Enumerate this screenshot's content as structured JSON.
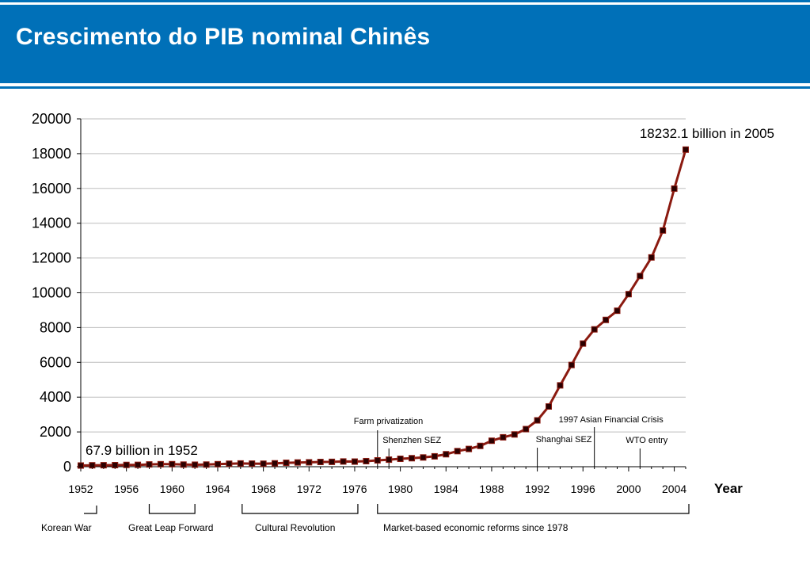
{
  "slide": {
    "title": "Crescimento do PIB nominal Chinês"
  },
  "colors": {
    "header": "#0070b8",
    "line": "#8b1a10",
    "marker": "#2a0000"
  },
  "chart_data": {
    "type": "line",
    "title": "",
    "xlabel": "Year",
    "ylabel": "",
    "xlim": [
      1952,
      2005
    ],
    "ylim": [
      0,
      20000
    ],
    "grid": true,
    "yticks": [
      0,
      2000,
      4000,
      6000,
      8000,
      10000,
      12000,
      14000,
      16000,
      18000,
      20000
    ],
    "xticks": [
      1952,
      1956,
      1960,
      1964,
      1968,
      1972,
      1976,
      1980,
      1984,
      1988,
      1992,
      1996,
      2000,
      2004
    ],
    "series": [
      {
        "x": [
          1952,
          1953,
          1954,
          1955,
          1956,
          1957,
          1958,
          1959,
          1960,
          1961,
          1962,
          1963,
          1964,
          1965,
          1966,
          1967,
          1968,
          1969,
          1970,
          1971,
          1972,
          1973,
          1974,
          1975,
          1976,
          1977,
          1978,
          1979,
          1980,
          1981,
          1982,
          1983,
          1984,
          1985,
          1986,
          1987,
          1988,
          1989,
          1990,
          1991,
          1992,
          1993,
          1994,
          1995,
          1996,
          1997,
          1998,
          1999,
          2000,
          2001,
          2002,
          2003,
          2004,
          2005
        ],
        "y": [
          67.9,
          82,
          86,
          91,
          103,
          107,
          131,
          144,
          146,
          122,
          115,
          123,
          145,
          172,
          187,
          177,
          172,
          194,
          225,
          243,
          252,
          272,
          279,
          300,
          294,
          320,
          365,
          406,
          455,
          489,
          532,
          596,
          717,
          896,
          1020,
          1196,
          1493,
          1691,
          1855,
          2162,
          2664,
          3463,
          4676,
          5848,
          7080,
          7897,
          8440,
          8968,
          9921,
          10966,
          12033,
          13582,
          15988,
          18232.1
        ]
      }
    ],
    "annotations": {
      "start_label": "67.9 billion in 1952",
      "end_label": "18232.1 billion in 2005",
      "events": [
        {
          "year": 1978,
          "label": "Farm privatization"
        },
        {
          "year": 1979,
          "label": "Shenzhen SEZ"
        },
        {
          "year": 1992,
          "label": "Shanghai SEZ"
        },
        {
          "year": 1997,
          "label": "1997 Asian Financial Crisis"
        },
        {
          "year": 2001,
          "label": "WTO entry"
        }
      ],
      "eras": [
        {
          "start": 1953,
          "end": 1953,
          "label": "Korean War"
        },
        {
          "start": 1958,
          "end": 1962,
          "label": "Great Leap Forward"
        },
        {
          "start": 1966,
          "end": 1976,
          "label": "Cultural Revolution"
        },
        {
          "start": 1978,
          "end": 2005,
          "label": "Market-based economic reforms since 1978"
        }
      ]
    }
  }
}
